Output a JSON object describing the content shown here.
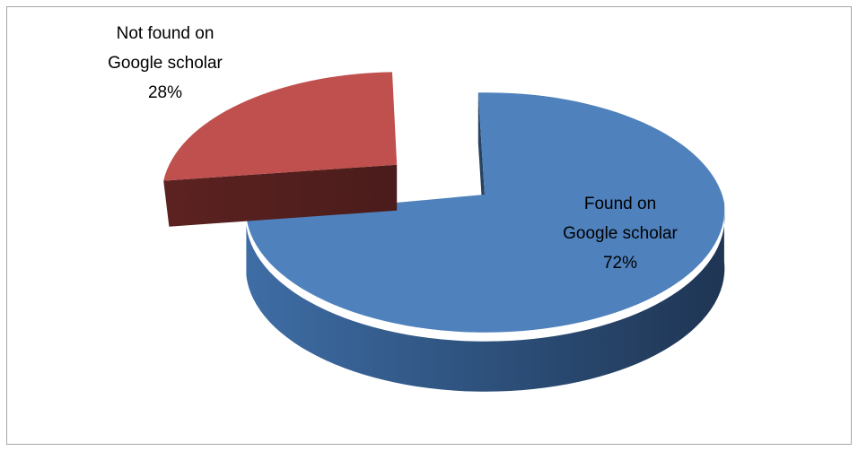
{
  "chart_data": {
    "type": "pie",
    "style": "3d-exploded",
    "slices": [
      {
        "label_lines": [
          "Found on",
          "Google scholar"
        ],
        "percent_label": "72%",
        "value": 72,
        "color": "#4f81bd"
      },
      {
        "label_lines": [
          "Not found on",
          "Google scholar"
        ],
        "percent_label": "28%",
        "value": 28,
        "color": "#c0504d"
      }
    ],
    "legend": "none",
    "data_labels": "category and percentage"
  }
}
